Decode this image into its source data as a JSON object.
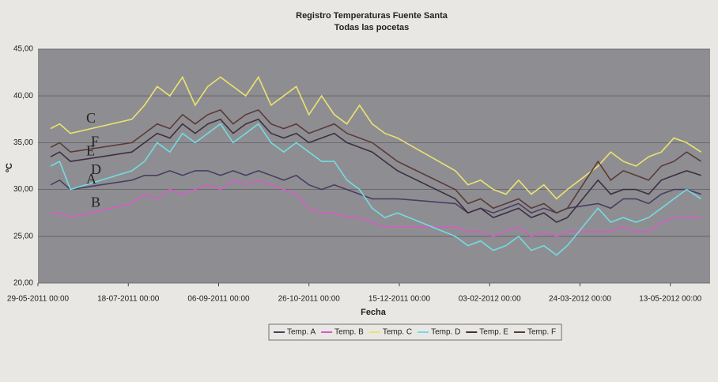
{
  "chart_data": {
    "type": "line",
    "title": "Registro Temperaturas Fuente Santa",
    "subtitle": "Todas las pocetas",
    "x_label": "Fecha",
    "y_label": "ºC",
    "x": [
      "2011-06-05",
      "2011-06-10",
      "2011-06-16",
      "2011-07-20",
      "2011-07-27",
      "2011-08-03",
      "2011-08-10",
      "2011-08-17",
      "2011-08-24",
      "2011-08-31",
      "2011-09-07",
      "2011-09-14",
      "2011-09-21",
      "2011-09-28",
      "2011-10-05",
      "2011-10-12",
      "2011-10-19",
      "2011-10-26",
      "2011-11-02",
      "2011-11-09",
      "2011-11-16",
      "2011-11-23",
      "2011-11-30",
      "2011-12-07",
      "2011-12-14",
      "2012-01-15",
      "2012-01-22",
      "2012-01-29",
      "2012-02-05",
      "2012-02-12",
      "2012-02-19",
      "2012-02-26",
      "2012-03-04",
      "2012-03-11",
      "2012-03-17",
      "2012-04-03",
      "2012-04-10",
      "2012-04-17",
      "2012-04-24",
      "2012-05-01",
      "2012-05-08",
      "2012-05-15",
      "2012-05-22",
      "2012-05-30"
    ],
    "xlim": [
      "2011-05-29",
      "2012-06-04"
    ],
    "xticks": [
      {
        "value": "2011-05-29",
        "label": "29-05-2011 00:00"
      },
      {
        "value": "2011-07-18",
        "label": "18-07-2011 00:00"
      },
      {
        "value": "2011-09-06",
        "label": "06-09-2011 00:00"
      },
      {
        "value": "2011-10-26",
        "label": "26-10-2011 00:00"
      },
      {
        "value": "2011-12-15",
        "label": "15-12-2011 00:00"
      },
      {
        "value": "2012-02-03",
        "label": "03-02-2012 00:00"
      },
      {
        "value": "2012-03-24",
        "label": "24-03-2012 00:00"
      },
      {
        "value": "2012-05-13",
        "label": "13-05-2012 00:00"
      }
    ],
    "ylim": [
      20,
      45
    ],
    "yticks": [
      {
        "value": 20,
        "label": "20,00"
      },
      {
        "value": 25,
        "label": "25,00"
      },
      {
        "value": 30,
        "label": "30,00"
      },
      {
        "value": 35,
        "label": "35,00"
      },
      {
        "value": 40,
        "label": "40,00"
      },
      {
        "value": 45,
        "label": "45,00"
      }
    ],
    "grid": true,
    "legend": "bottom",
    "series": [
      {
        "name": "Temp. A",
        "tag": "A",
        "color": "#4a3d63",
        "values": [
          30.5,
          31,
          30,
          31,
          31.5,
          31.5,
          32,
          31.5,
          32,
          32,
          31.5,
          32,
          31.5,
          32,
          31.5,
          31,
          31.5,
          30.5,
          30,
          30.5,
          30,
          29.5,
          29,
          29,
          29,
          28.5,
          27.5,
          28,
          27.5,
          28,
          28.5,
          27.5,
          28,
          27.5,
          28,
          28.5,
          28,
          29,
          29,
          28.5,
          29.5,
          30,
          30,
          29.5
        ]
      },
      {
        "name": "Temp. B",
        "tag": "B",
        "color": "#d45cc4",
        "values": [
          27.5,
          27.5,
          27,
          28.5,
          29.5,
          29,
          30,
          29.5,
          30,
          30.5,
          30,
          31,
          30.5,
          31,
          30.5,
          30,
          29.5,
          28,
          27.5,
          27.5,
          27,
          27,
          26.5,
          26,
          26,
          26,
          25.5,
          25.5,
          25,
          25.5,
          26,
          25,
          25.5,
          25,
          25.5,
          25.5,
          25.5,
          26,
          25.5,
          25.5,
          26.5,
          27,
          27,
          27
        ]
      },
      {
        "name": "Temp. C",
        "tag": "C",
        "color": "#ebe36e",
        "values": [
          36.5,
          37,
          36,
          37.5,
          39,
          41,
          40,
          42,
          39,
          41,
          42,
          41,
          40,
          42,
          39,
          40,
          41,
          38,
          40,
          38,
          37,
          39,
          37,
          36,
          35.5,
          32,
          30.5,
          31,
          30,
          29.5,
          31,
          29.5,
          30.5,
          29,
          30,
          32.5,
          34,
          33,
          32.5,
          33.5,
          34,
          35.5,
          35,
          34
        ]
      },
      {
        "name": "Temp. D",
        "tag": "D",
        "color": "#74dbe3",
        "values": [
          32.5,
          33,
          30,
          32,
          33,
          35,
          34,
          36,
          35,
          36,
          37,
          35,
          36,
          37,
          35,
          34,
          35,
          34,
          33,
          33,
          31,
          30,
          28,
          27,
          27.5,
          25,
          24,
          24.5,
          23.5,
          24,
          25,
          23.5,
          24,
          23,
          24,
          28,
          26.5,
          27,
          26.5,
          27,
          28,
          29,
          30,
          29
        ]
      },
      {
        "name": "Temp. E",
        "tag": "E",
        "color": "#3e2f3f",
        "values": [
          33.5,
          34,
          33,
          34,
          35,
          36,
          35.5,
          37,
          36,
          37,
          37.5,
          36,
          37,
          37.5,
          36,
          35.5,
          36,
          35,
          35.5,
          36,
          35,
          34.5,
          34,
          33,
          32,
          29,
          27.5,
          28,
          27,
          27.5,
          28,
          27,
          27.5,
          26.5,
          27,
          31,
          29.5,
          30,
          30,
          29.5,
          31,
          31.5,
          32,
          31.5
        ]
      },
      {
        "name": "Temp. F",
        "tag": "F",
        "color": "#5c3a38",
        "values": [
          34.5,
          35,
          34,
          35,
          36,
          37,
          36.5,
          38,
          37,
          38,
          38.5,
          37,
          38,
          38.5,
          37,
          36.5,
          37,
          36,
          36.5,
          37,
          36,
          35.5,
          35,
          34,
          33,
          30,
          28.5,
          29,
          28,
          28.5,
          29,
          28,
          28.5,
          27.5,
          28,
          33,
          31,
          32,
          31.5,
          31,
          32.5,
          33,
          34,
          33
        ]
      }
    ]
  }
}
